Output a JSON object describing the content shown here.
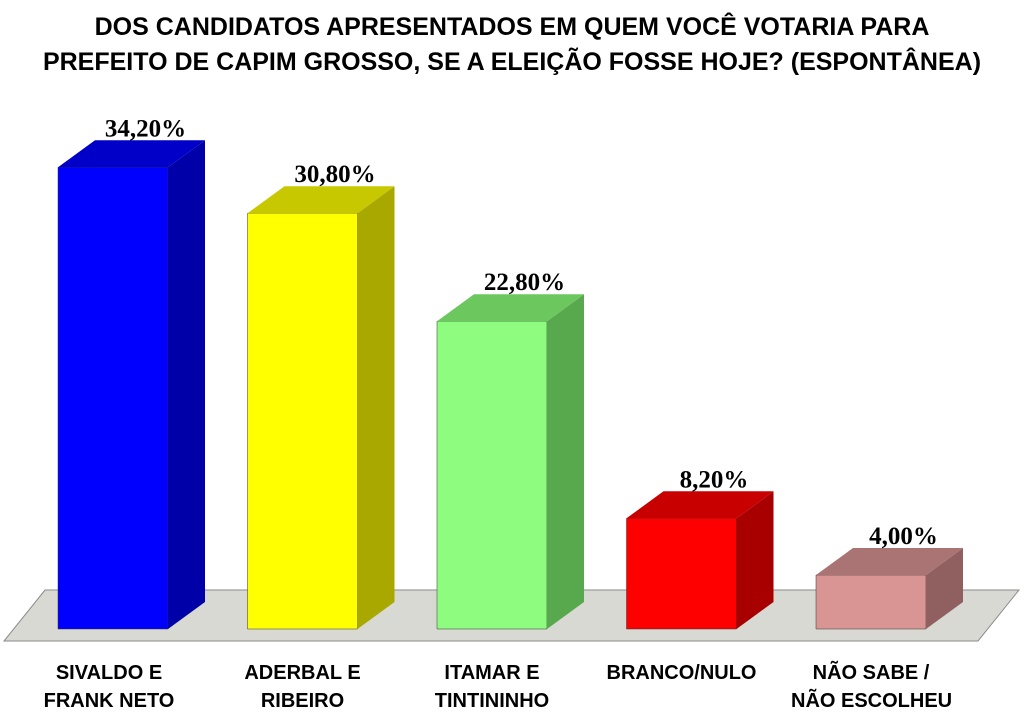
{
  "title_lines": [
    "DOS CANDIDATOS APRESENTADOS EM QUEM VOCÊ VOTARIA PARA",
    "PREFEITO DE CAPIM GROSSO, SE A ELEIÇÃO FOSSE HOJE? (ESPONTÂNEA)"
  ],
  "chart_data": {
    "type": "bar",
    "title": "DOS CANDIDATOS APRESENTADOS EM QUEM VOCÊ VOTARIA PARA PREFEITO DE CAPIM GROSSO, SE A ELEIÇÃO FOSSE HOJE? (ESPONTÂNEA)",
    "categories": [
      [
        "SIVALDO E",
        "FRANK NETO"
      ],
      [
        "ADERBAL E",
        "RIBEIRO"
      ],
      [
        "ITAMAR E",
        "TINTININHO"
      ],
      [
        "BRANCO/NULO"
      ],
      [
        "NÃO SABE /",
        "NÃO ESCOLHEU"
      ]
    ],
    "values": [
      34.2,
      30.8,
      22.8,
      8.2,
      4.0
    ],
    "value_labels": [
      "34,20%",
      "30,80%",
      "22,80%",
      "8,20%",
      "4,00%"
    ],
    "colors": [
      {
        "front": "#0000ff",
        "side": "#0000a8",
        "top": "#0000c8"
      },
      {
        "front": "#ffff00",
        "side": "#a8a800",
        "top": "#c8c800"
      },
      {
        "front": "#8dfc7f",
        "side": "#58a84e",
        "top": "#6cc85e"
      },
      {
        "front": "#ff0000",
        "side": "#a80000",
        "top": "#c80000"
      },
      {
        "front": "#d99594",
        "side": "#906060",
        "top": "#ab7474"
      }
    ],
    "floor_color": "#d9d9d4",
    "xlabel": "",
    "ylabel": "",
    "ylim": [
      0,
      40
    ],
    "grid": false,
    "legend": "none"
  }
}
